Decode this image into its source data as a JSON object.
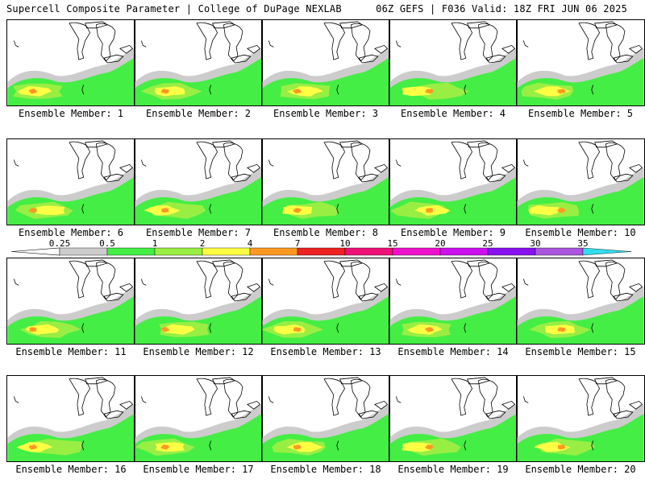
{
  "header": {
    "left_title": "Supercell Composite Parameter | College of DuPage NEXLAB",
    "right_title": "06Z GEFS | F036 Valid: 18Z FRI JUN 06 2025"
  },
  "colorbar": {
    "ticks": [
      "0.25",
      "0.5",
      "1",
      "2",
      "4",
      "7",
      "10",
      "15",
      "20",
      "25",
      "30",
      "35"
    ],
    "colors": [
      "#cccccc",
      "#44ee44",
      "#99ee44",
      "#ffff44",
      "#ff9922",
      "#ee2222",
      "#ee1177",
      "#ee11cc",
      "#cc11ee",
      "#8811ee",
      "#aa55dd",
      "#33ddee"
    ]
  },
  "members": [
    {
      "label": "Ensemble Member: 1"
    },
    {
      "label": "Ensemble Member: 2"
    },
    {
      "label": "Ensemble Member: 3"
    },
    {
      "label": "Ensemble Member: 4"
    },
    {
      "label": "Ensemble Member: 5"
    },
    {
      "label": "Ensemble Member: 6"
    },
    {
      "label": "Ensemble Member: 7"
    },
    {
      "label": "Ensemble Member: 8"
    },
    {
      "label": "Ensemble Member: 9"
    },
    {
      "label": "Ensemble Member: 10"
    },
    {
      "label": "Ensemble Member: 11"
    },
    {
      "label": "Ensemble Member: 12"
    },
    {
      "label": "Ensemble Member: 13"
    },
    {
      "label": "Ensemble Member: 14"
    },
    {
      "label": "Ensemble Member: 15"
    },
    {
      "label": "Ensemble Member: 16"
    },
    {
      "label": "Ensemble Member: 17"
    },
    {
      "label": "Ensemble Member: 18"
    },
    {
      "label": "Ensemble Member: 19"
    },
    {
      "label": "Ensemble Member: 20"
    }
  ]
}
